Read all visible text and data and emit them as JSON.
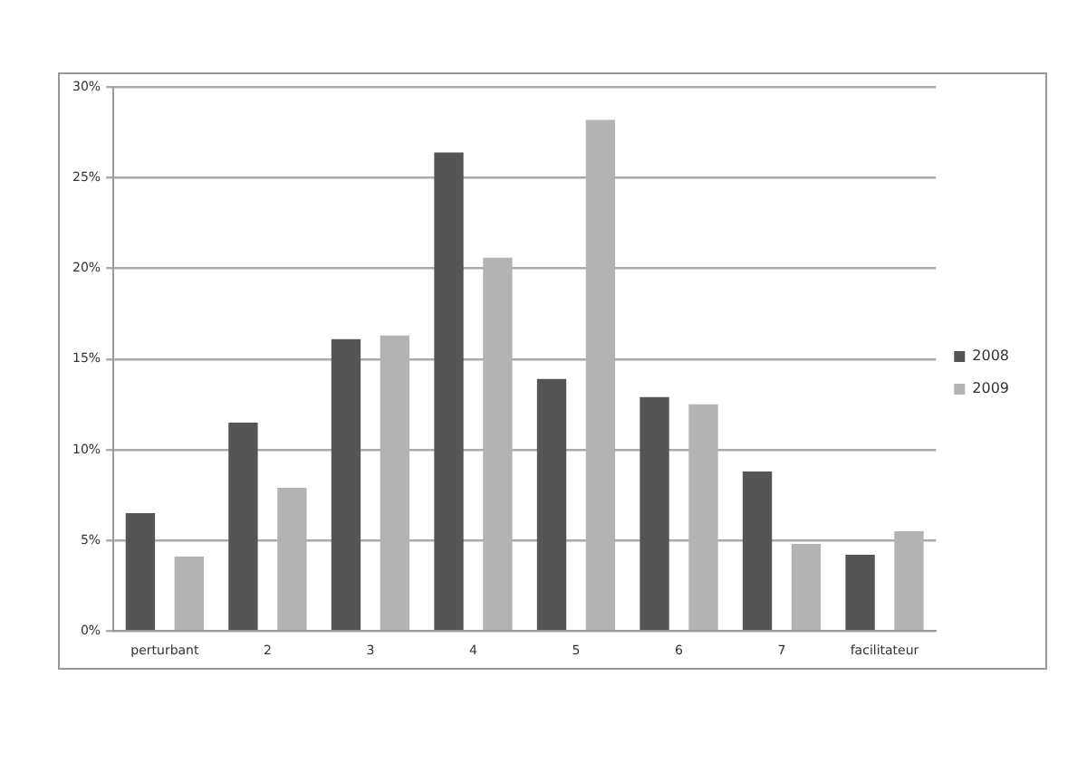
{
  "chart_data": {
    "type": "bar",
    "categories": [
      "perturbant",
      "2",
      "3",
      "4",
      "5",
      "6",
      "7",
      "facilitateur"
    ],
    "series": [
      {
        "name": "2008",
        "color": "#555555",
        "values": [
          6.5,
          11.5,
          16.1,
          26.4,
          13.9,
          12.9,
          8.8,
          4.2
        ]
      },
      {
        "name": "2009",
        "color": "#b3b3b3",
        "values": [
          4.1,
          7.9,
          16.3,
          20.6,
          28.2,
          12.5,
          4.8,
          5.5
        ]
      }
    ],
    "ylim": [
      0,
      30
    ],
    "yticks": [
      {
        "value": 0,
        "label": "0%"
      },
      {
        "value": 5,
        "label": "5%"
      },
      {
        "value": 10,
        "label": "10%"
      },
      {
        "value": 15,
        "label": "15%"
      },
      {
        "value": 20,
        "label": "20%"
      },
      {
        "value": 25,
        "label": "25%"
      },
      {
        "value": 30,
        "label": "30%"
      }
    ],
    "grid": "y",
    "legend": "right"
  }
}
